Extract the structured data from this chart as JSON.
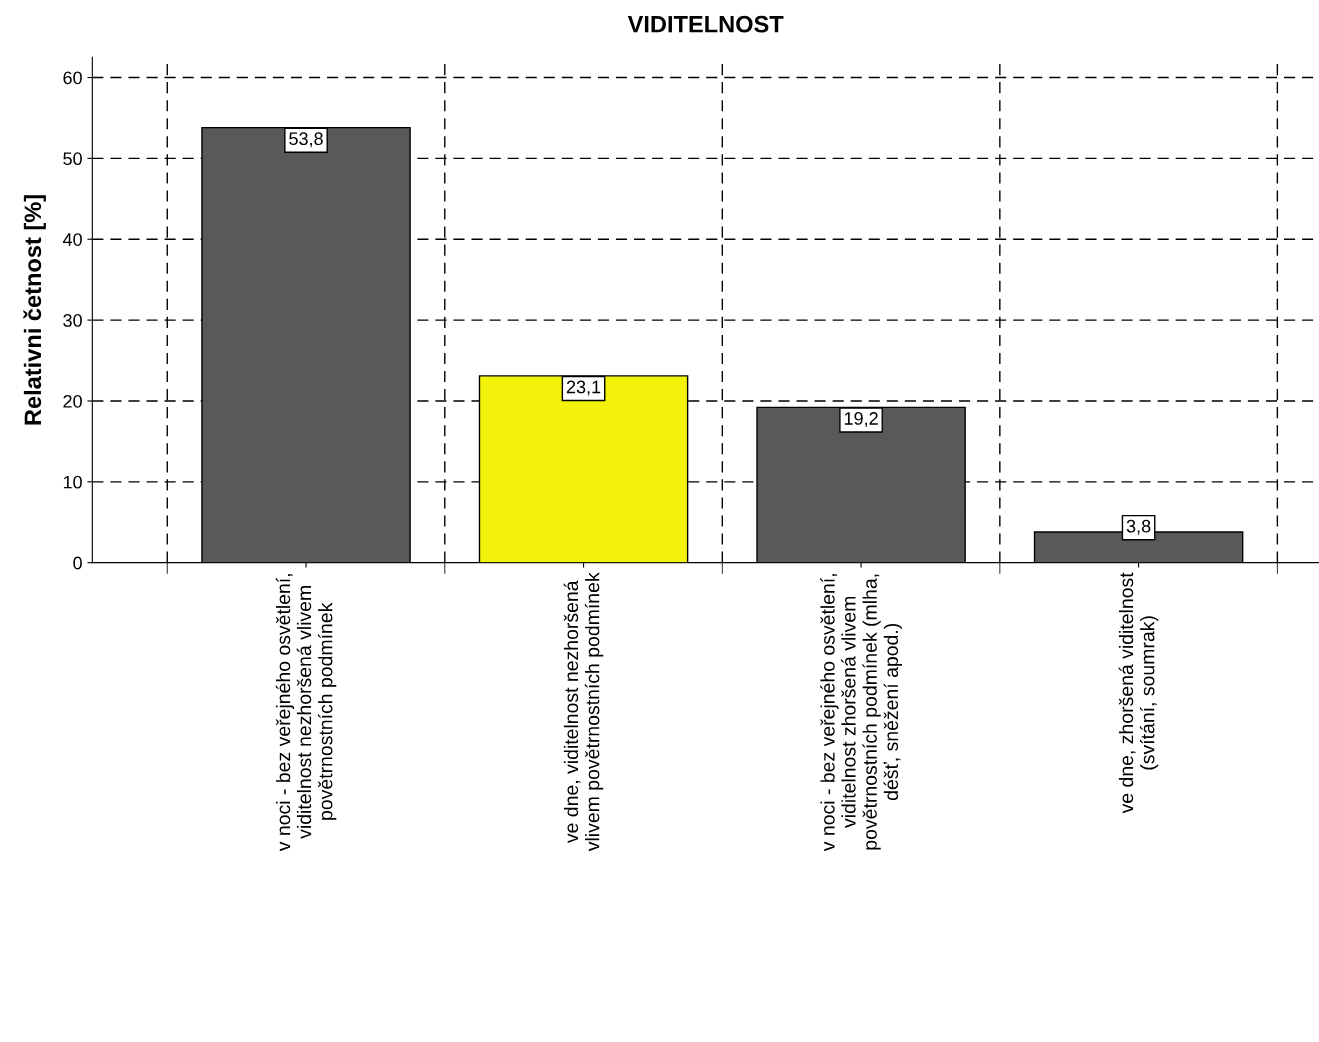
{
  "chart_data": {
    "type": "bar",
    "title": "VIDITELNOST",
    "ylabel": "Relativni četnost [%]",
    "categories": [
      "v noci - bez veřejného osvětlení,\nviditelnost nezhoršená vlivem\npovětrnostních podmínek",
      "ve dne, viditelnost nezhoršená\nvlivem povětrnostních podmínek",
      "v noci - bez veřejného osvětlení,\nviditelnost zhoršená vlivem\npovětrnostních podmínek (mlha,\ndéšť, sněžení apod.)",
      "ve dne, zhoršená viditelnost\n(svítání, soumrak)"
    ],
    "values": [
      53.8,
      23.1,
      19.2,
      3.8
    ],
    "colors": [
      "#595959",
      "#f2f20a",
      "#595959",
      "#595959"
    ],
    "value_labels": [
      "53,8",
      "23,1",
      "19,2",
      "3,8"
    ],
    "ylim": [
      0,
      62.5
    ],
    "yticks": [
      0,
      10,
      20,
      30,
      40,
      50,
      60
    ],
    "grid": true
  }
}
